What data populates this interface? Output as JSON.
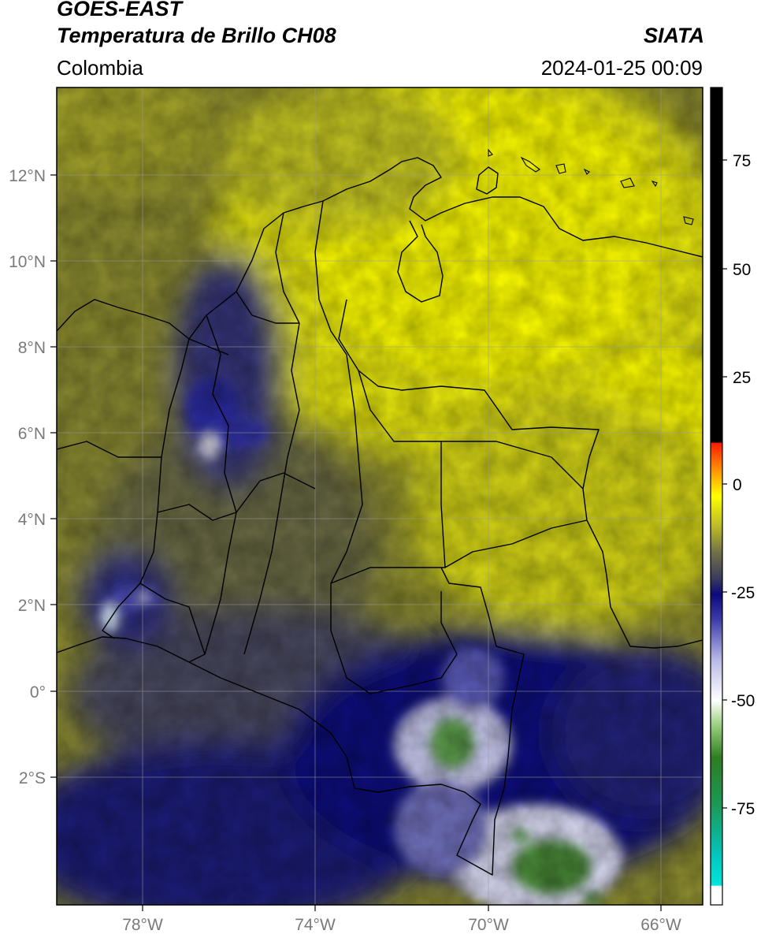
{
  "header": {
    "satellite": "GOES-EAST",
    "product": "Temperatura de Brillo CH08",
    "brand": "SIATA",
    "region": "Colombia",
    "timestamp": "2024-01-25 00:09"
  },
  "map": {
    "lat_labels": [
      "12°N",
      "10°N",
      "8°N",
      "6°N",
      "4°N",
      "2°N",
      "0°",
      "2°S"
    ],
    "lon_labels": [
      "78°W",
      "74°W",
      "70°W",
      "66°W"
    ]
  },
  "colorbar": {
    "tick_labels": [
      "75",
      "50",
      "25",
      "0",
      "-25",
      "-50",
      "-75"
    ],
    "colors": {
      "black": "#000000",
      "red": "#ff1a00",
      "orange": "#ff9a00",
      "yellow": "#ffff00",
      "olive": "#8f8f2e",
      "gray": "#55555a",
      "navy": "#0a0a7a",
      "lavender": "#c9c9ee",
      "white": "#ffffff",
      "green": "#2f7d20",
      "teal": "#00d8d0"
    }
  }
}
